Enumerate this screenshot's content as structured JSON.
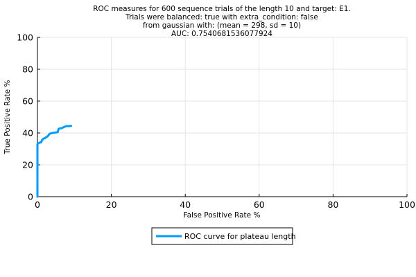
{
  "chart_data": {
    "type": "line",
    "title_lines": [
      "ROC measures for 600 sequence trials of the length 10 and target: E1.",
      "Trials were balanced: true with extra_condition: false",
      "from gaussian with: (mean = 298, sd = 10)",
      "AUC: 0.7540681536077924"
    ],
    "xlabel": "False Positive Rate %",
    "ylabel": "True Positive Rate %",
    "xlim": [
      0,
      100
    ],
    "ylim": [
      0,
      100
    ],
    "xticks": [
      "0",
      "20",
      "40",
      "60",
      "80",
      "100"
    ],
    "yticks": [
      "0",
      "20",
      "40",
      "60",
      "80",
      "100"
    ],
    "grid": true,
    "legend_position": "bottom-center",
    "series": [
      {
        "name": "ROC curve for plateau length",
        "color": "#009AFA",
        "x": [
          0,
          0,
          0.3,
          0.6,
          1.0,
          1.2,
          1.5,
          1.5,
          2.2,
          2.8,
          3.3,
          3.7,
          4.1,
          5.5,
          5.7,
          5.9,
          6.6,
          7.2,
          7.9,
          8.5,
          9.1
        ],
        "y": [
          0,
          33,
          33.5,
          34,
          34,
          35.5,
          36,
          36.2,
          37,
          38,
          39.5,
          39.8,
          40,
          40.5,
          42.5,
          42.8,
          43,
          43.8,
          44.3,
          44.3,
          44.4
        ]
      }
    ]
  }
}
